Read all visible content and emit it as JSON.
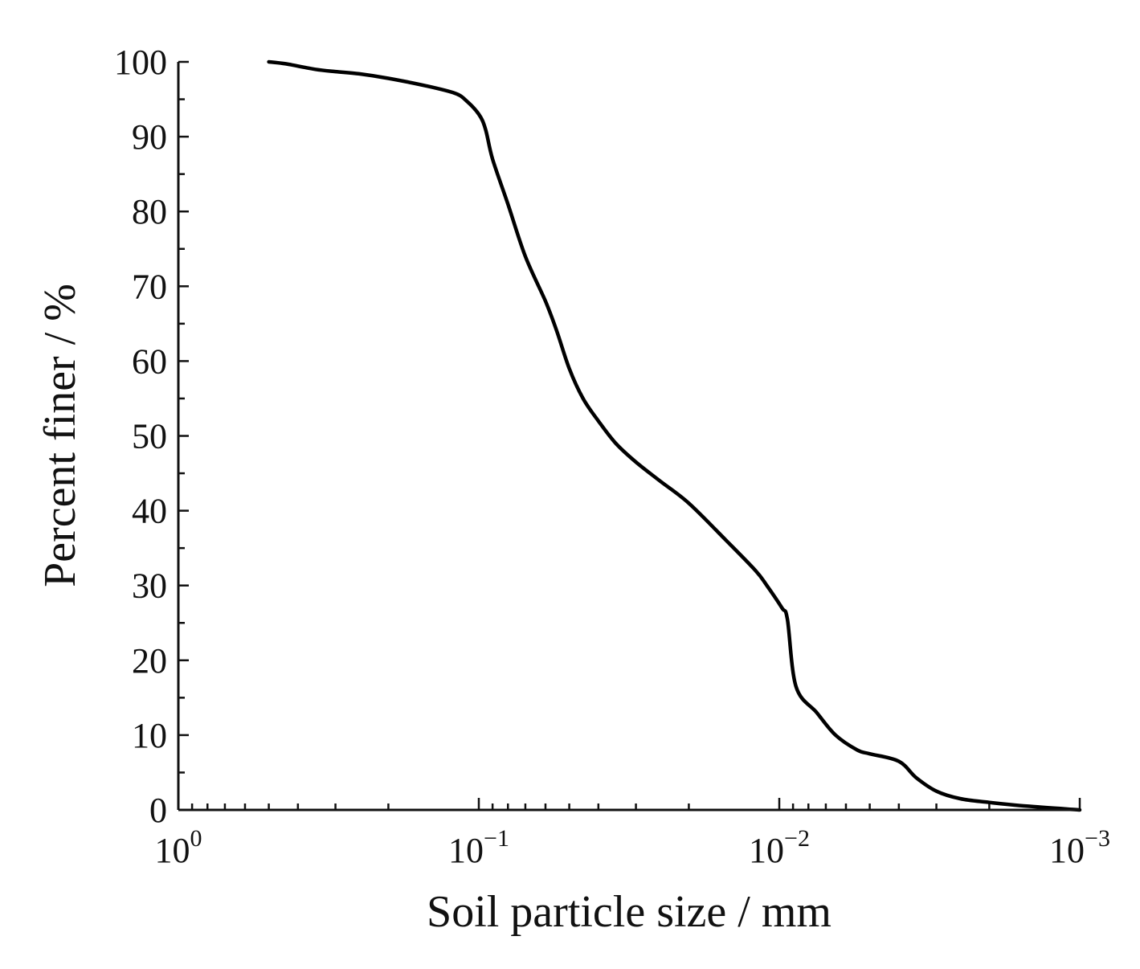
{
  "chart_data": {
    "type": "line",
    "title": "",
    "xlabel": "Soil particle size / mm",
    "ylabel": "Percent finer / %",
    "x_scale": "log",
    "x_reversed": true,
    "xlim": [
      1,
      0.001
    ],
    "ylim": [
      0,
      100
    ],
    "x_ticks": [
      {
        "value": 1,
        "base": "10",
        "exp": "0"
      },
      {
        "value": 0.1,
        "base": "10",
        "exp": "−1"
      },
      {
        "value": 0.01,
        "base": "10",
        "exp": "−2"
      },
      {
        "value": 0.001,
        "base": "10",
        "exp": "−3"
      }
    ],
    "y_ticks": [
      "0",
      "10",
      "20",
      "30",
      "40",
      "50",
      "60",
      "70",
      "80",
      "90",
      "100"
    ],
    "grid": false,
    "line_color": "#000000",
    "series": [
      {
        "x": [
          0.5,
          0.45,
          0.42,
          0.35,
          0.3,
          0.25,
          0.2,
          0.15,
          0.12,
          0.11,
          0.1,
          0.095,
          0.09,
          0.08,
          0.07,
          0.06,
          0.055,
          0.05,
          0.045,
          0.04,
          0.035,
          0.03,
          0.025,
          0.02,
          0.015,
          0.012,
          0.011,
          0.0098,
          0.0094,
          0.0088,
          0.0075,
          0.0065,
          0.0055,
          0.005,
          0.004,
          0.0035,
          0.003,
          0.0025,
          0.002,
          0.0015,
          0.001
        ],
        "y": [
          100,
          99.8,
          99.6,
          99,
          98.7,
          98.4,
          97.8,
          96.8,
          95.8,
          94.8,
          93,
          91,
          87,
          81,
          74,
          68,
          64,
          59,
          55,
          52,
          49,
          46.5,
          44,
          41,
          36,
          32,
          30,
          27,
          25.5,
          16.5,
          13,
          10,
          8,
          7.5,
          6.5,
          4.3,
          2.5,
          1.5,
          1,
          0.5,
          0
        ]
      }
    ]
  }
}
